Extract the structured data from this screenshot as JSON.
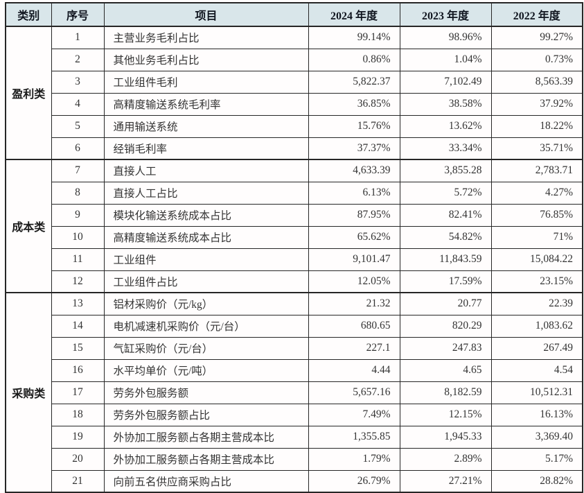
{
  "table": {
    "headers": {
      "category": "类别",
      "number": "序号",
      "item": "项目",
      "y2024": "2024 年度",
      "y2023": "2023 年度",
      "y2022": "2022 年度"
    },
    "header_bg_color": "#d9e6ea",
    "border_color": "#262626",
    "categories": [
      {
        "label": "盈利类",
        "rows": [
          {
            "no": "1",
            "item": "主营业务毛利占比",
            "y2024": "99.14%",
            "y2023": "98.96%",
            "y2022": "99.27%"
          },
          {
            "no": "2",
            "item": "其他业务毛利占比",
            "y2024": "0.86%",
            "y2023": "1.04%",
            "y2022": "0.73%"
          },
          {
            "no": "3",
            "item": "工业组件毛利",
            "y2024": "5,822.37",
            "y2023": "7,102.49",
            "y2022": "8,563.39"
          },
          {
            "no": "4",
            "item": "高精度输送系统毛利率",
            "y2024": "36.85%",
            "y2023": "38.58%",
            "y2022": "37.92%"
          },
          {
            "no": "5",
            "item": "通用输送系统",
            "y2024": "15.76%",
            "y2023": "13.62%",
            "y2022": "18.22%"
          },
          {
            "no": "6",
            "item": "经销毛利率",
            "y2024": "37.37%",
            "y2023": "33.34%",
            "y2022": "35.71%"
          }
        ]
      },
      {
        "label": "成本类",
        "rows": [
          {
            "no": "7",
            "item": "直接人工",
            "y2024": "4,633.39",
            "y2023": "3,855.28",
            "y2022": "2,783.71"
          },
          {
            "no": "8",
            "item": "直接人工占比",
            "y2024": "6.13%",
            "y2023": "5.72%",
            "y2022": "4.27%"
          },
          {
            "no": "9",
            "item": "模块化输送系统成本占比",
            "y2024": "87.95%",
            "y2023": "82.41%",
            "y2022": "76.85%"
          },
          {
            "no": "10",
            "item": "高精度输送系统成本占比",
            "y2024": "65.62%",
            "y2023": "54.82%",
            "y2022": "71%"
          },
          {
            "no": "11",
            "item": "工业组件",
            "y2024": "9,101.47",
            "y2023": "11,843.59",
            "y2022": "15,084.22"
          },
          {
            "no": "12",
            "item": "工业组件占比",
            "y2024": "12.05%",
            "y2023": "17.59%",
            "y2022": "23.15%"
          }
        ]
      },
      {
        "label": "采购类",
        "rows": [
          {
            "no": "13",
            "item": "铝材采购价（元/kg）",
            "y2024": "21.32",
            "y2023": "20.77",
            "y2022": "22.39"
          },
          {
            "no": "14",
            "item": "电机减速机采购价（元/台）",
            "y2024": "680.65",
            "y2023": "820.29",
            "y2022": "1,083.62"
          },
          {
            "no": "15",
            "item": "气缸采购价（元/台）",
            "y2024": "227.1",
            "y2023": "247.83",
            "y2022": "267.49"
          },
          {
            "no": "16",
            "item": "水平均单价（元/吨）",
            "y2024": "4.44",
            "y2023": "4.65",
            "y2022": "4.54"
          },
          {
            "no": "17",
            "item": "劳务外包服务额",
            "y2024": "5,657.16",
            "y2023": "8,182.59",
            "y2022": "10,512.31"
          },
          {
            "no": "18",
            "item": "劳务外包服务额占比",
            "y2024": "7.49%",
            "y2023": "12.15%",
            "y2022": "16.13%"
          },
          {
            "no": "19",
            "item": "外协加工服务额占各期主营成本比",
            "y2024": "1,355.85",
            "y2023": "1,945.33",
            "y2022": "3,369.40"
          },
          {
            "no": "20",
            "item": "外协加工服务额占各期主营成本比",
            "y2024": "1.79%",
            "y2023": "2.89%",
            "y2022": "5.17%"
          },
          {
            "no": "21",
            "item": "向前五名供应商采购占比",
            "y2024": "26.79%",
            "y2023": "27.21%",
            "y2022": "28.82%"
          }
        ]
      }
    ]
  }
}
